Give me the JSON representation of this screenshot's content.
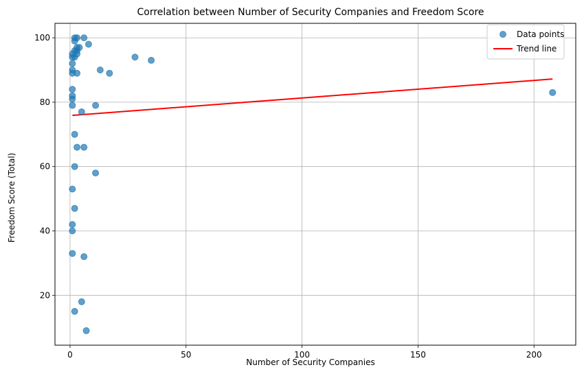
{
  "chart_data": {
    "type": "scatter",
    "title": "Correlation between Number of Security Companies and Freedom Score",
    "xlabel": "Number of Security Companies",
    "ylabel": "Freedom Score (Total)",
    "xlim": [
      -6.5,
      218
    ],
    "ylim": [
      4.5,
      104.5
    ],
    "xticks": [
      0,
      50,
      100,
      150,
      200
    ],
    "yticks": [
      20,
      40,
      60,
      80,
      100
    ],
    "grid": true,
    "legend_position": "top-right",
    "colors": {
      "points": "#1f77b4",
      "trend": "#ff0000"
    },
    "series": [
      {
        "name": "Data points",
        "kind": "scatter",
        "points": [
          [
            2,
            100
          ],
          [
            3,
            100
          ],
          [
            6,
            100
          ],
          [
            2,
            99
          ],
          [
            8,
            98
          ],
          [
            3,
            97
          ],
          [
            4,
            97
          ],
          [
            2,
            96
          ],
          [
            3,
            96
          ],
          [
            1,
            95
          ],
          [
            3,
            95
          ],
          [
            1,
            94
          ],
          [
            2,
            94
          ],
          [
            28,
            94
          ],
          [
            35,
            93
          ],
          [
            1,
            92
          ],
          [
            13,
            90
          ],
          [
            1,
            90
          ],
          [
            1,
            89
          ],
          [
            3,
            89
          ],
          [
            17,
            89
          ],
          [
            1,
            84
          ],
          [
            208,
            83
          ],
          [
            1,
            82
          ],
          [
            1,
            81
          ],
          [
            1,
            79
          ],
          [
            11,
            79
          ],
          [
            5,
            77
          ],
          [
            2,
            70
          ],
          [
            3,
            66
          ],
          [
            6,
            66
          ],
          [
            2,
            60
          ],
          [
            11,
            58
          ],
          [
            1,
            53
          ],
          [
            2,
            47
          ],
          [
            1,
            42
          ],
          [
            1,
            40
          ],
          [
            1,
            33
          ],
          [
            6,
            32
          ],
          [
            5,
            18
          ],
          [
            2,
            15
          ],
          [
            7,
            9
          ]
        ]
      },
      {
        "name": "Trend line",
        "kind": "line",
        "points": [
          [
            1,
            75.9
          ],
          [
            208,
            87.2
          ]
        ]
      }
    ]
  }
}
